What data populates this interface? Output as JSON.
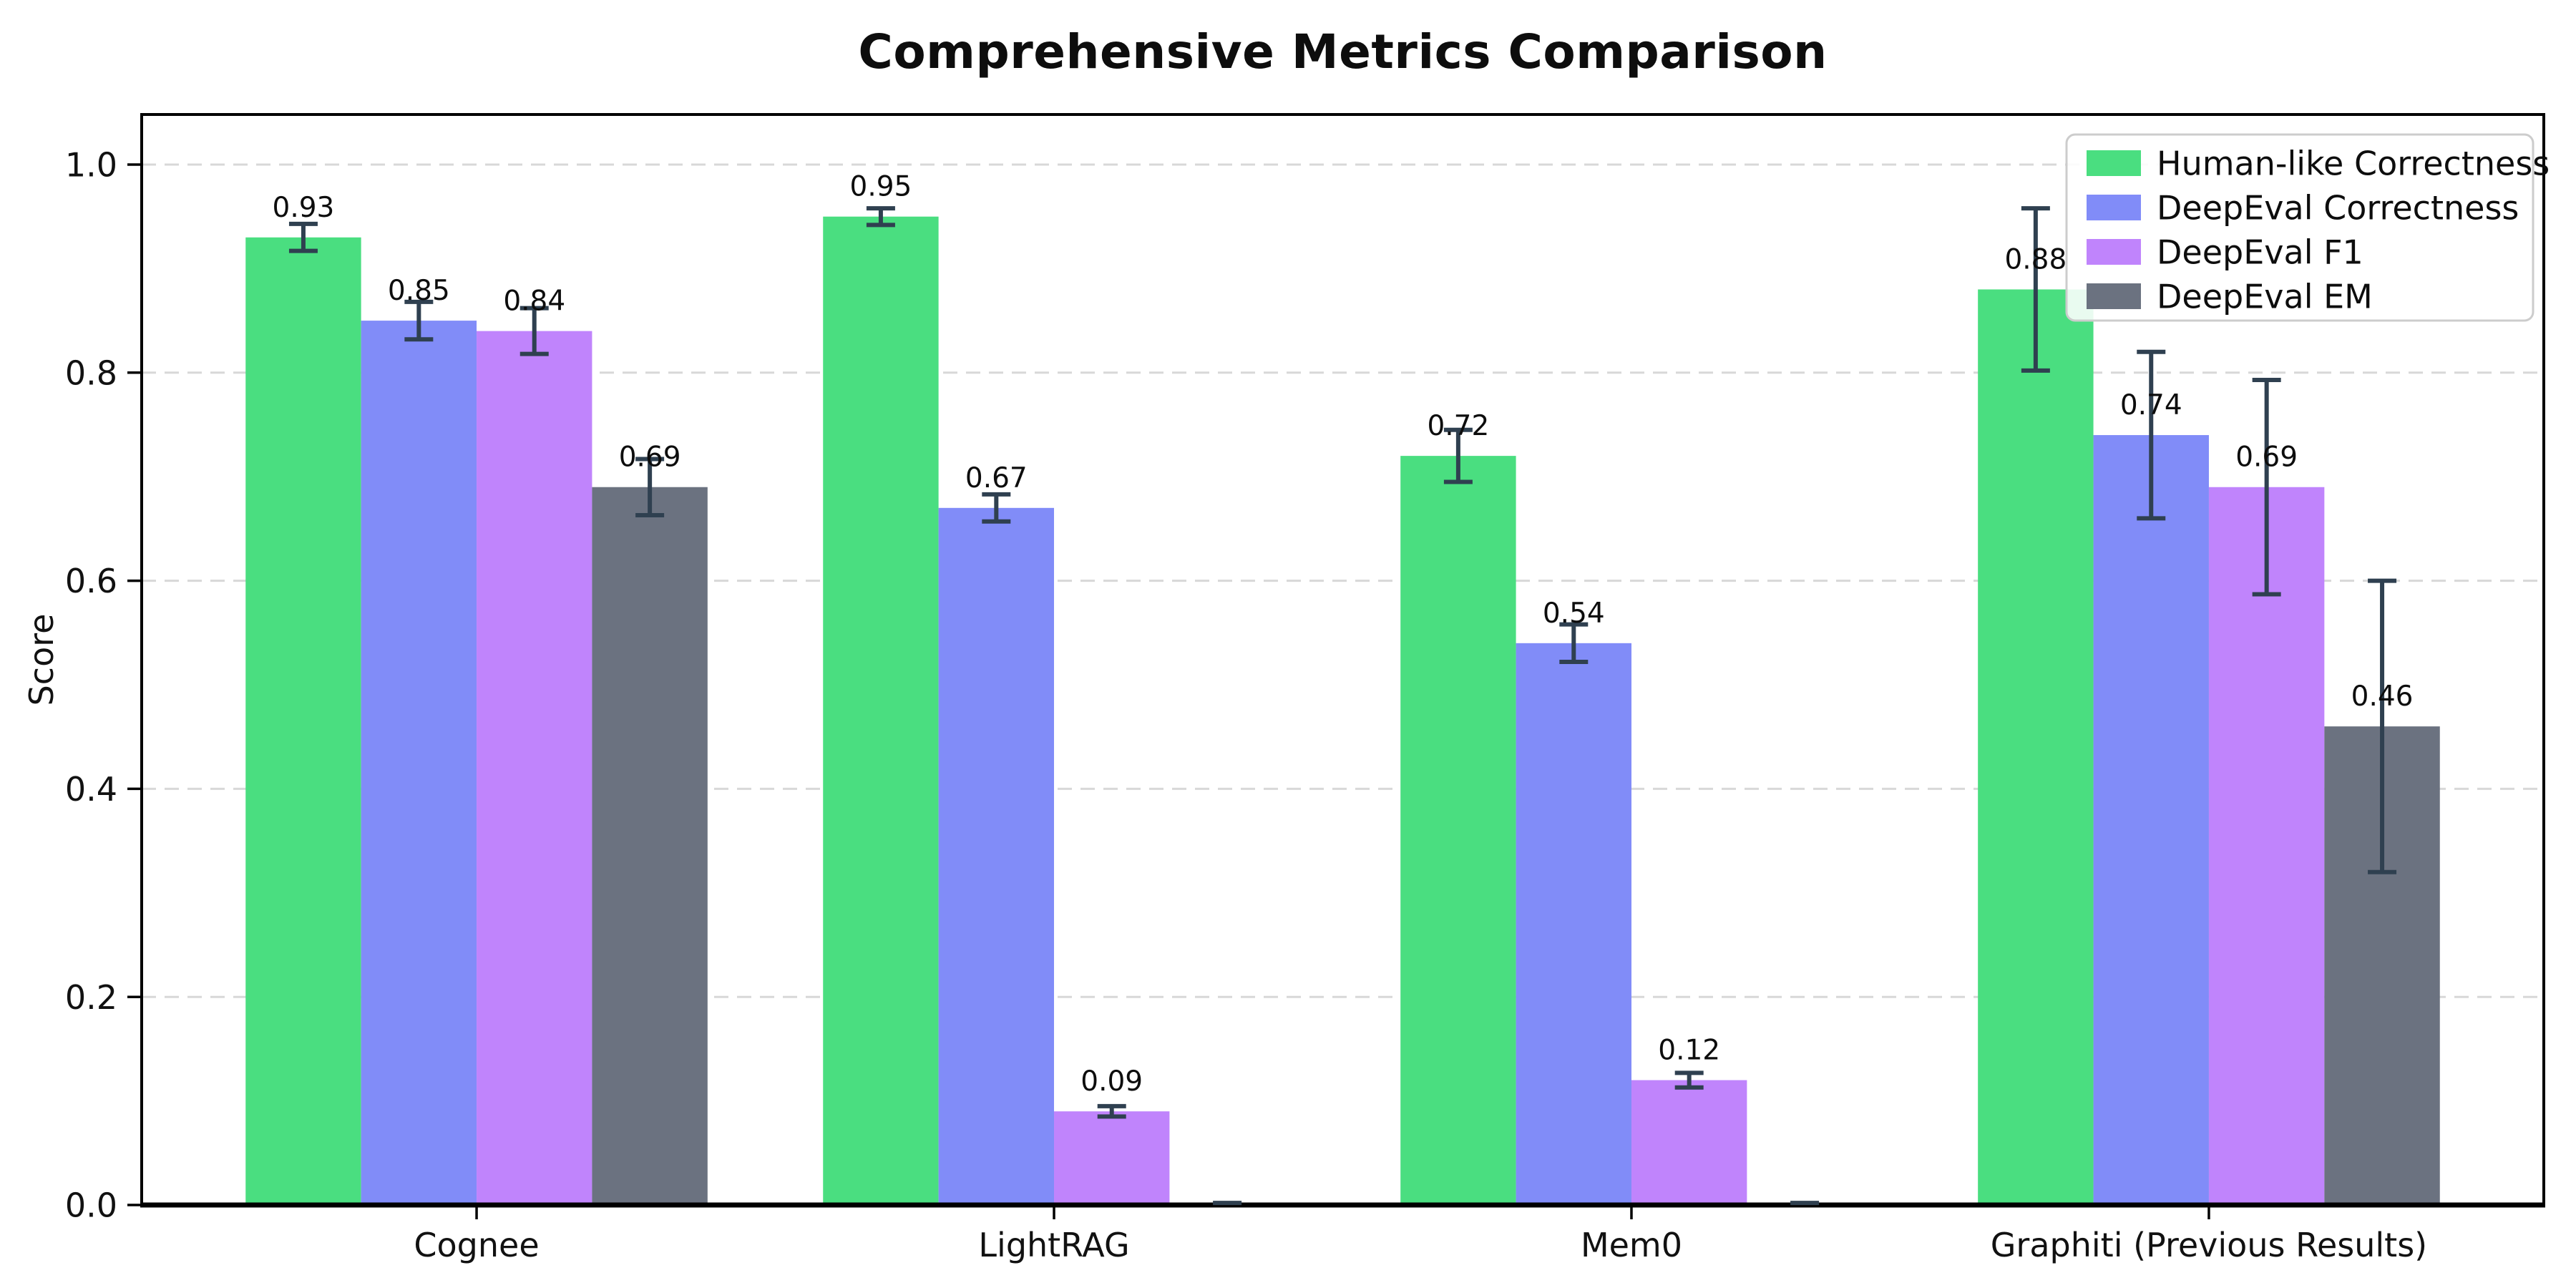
{
  "figure": {
    "background": "#ffffff"
  },
  "chart_data": {
    "type": "bar",
    "title": "Comprehensive Metrics Comparison",
    "ylabel": "Score",
    "xlabel": "",
    "categories": [
      "Cognee",
      "LightRAG",
      "Mem0",
      "Graphiti (Previous Results)"
    ],
    "series": [
      {
        "name": "Human-like Correctness",
        "color": "#4ade80",
        "values": [
          0.93,
          0.95,
          0.72,
          0.88
        ],
        "errors": [
          0.013,
          0.008,
          0.025,
          0.078
        ],
        "bar_labels": [
          "0.93",
          "0.95",
          "0.72",
          "0.88"
        ]
      },
      {
        "name": "DeepEval Correctness",
        "color": "#818cf8",
        "values": [
          0.85,
          0.67,
          0.54,
          0.74
        ],
        "errors": [
          0.018,
          0.013,
          0.018,
          0.08
        ],
        "bar_labels": [
          "0.85",
          "0.67",
          "0.54",
          "0.74"
        ]
      },
      {
        "name": "DeepEval F1",
        "color": "#c084fc",
        "values": [
          0.84,
          0.09,
          0.12,
          0.69
        ],
        "errors": [
          0.022,
          0.005,
          0.007,
          0.103
        ],
        "bar_labels": [
          "0.84",
          "0.09",
          "0.12",
          "0.69"
        ]
      },
      {
        "name": "DeepEval EM",
        "color": "#6b7280",
        "values": [
          0.69,
          0.0,
          0.0,
          0.46
        ],
        "errors": [
          0.027,
          0.002,
          0.002,
          0.14
        ],
        "bar_labels": [
          "0.69",
          "",
          "",
          "0.46"
        ]
      }
    ],
    "yticks": [
      "0.0",
      "0.2",
      "0.4",
      "0.6",
      "0.8",
      "1.0"
    ],
    "ylim": [
      0,
      1.048
    ],
    "grid": {
      "axis": "y",
      "style": "dashed",
      "color": "#d8d8d8"
    },
    "legend": {
      "position": "upper right"
    },
    "error_bar_color": "#2f4050",
    "axis_color": "#000000",
    "text_color": "#111111"
  }
}
